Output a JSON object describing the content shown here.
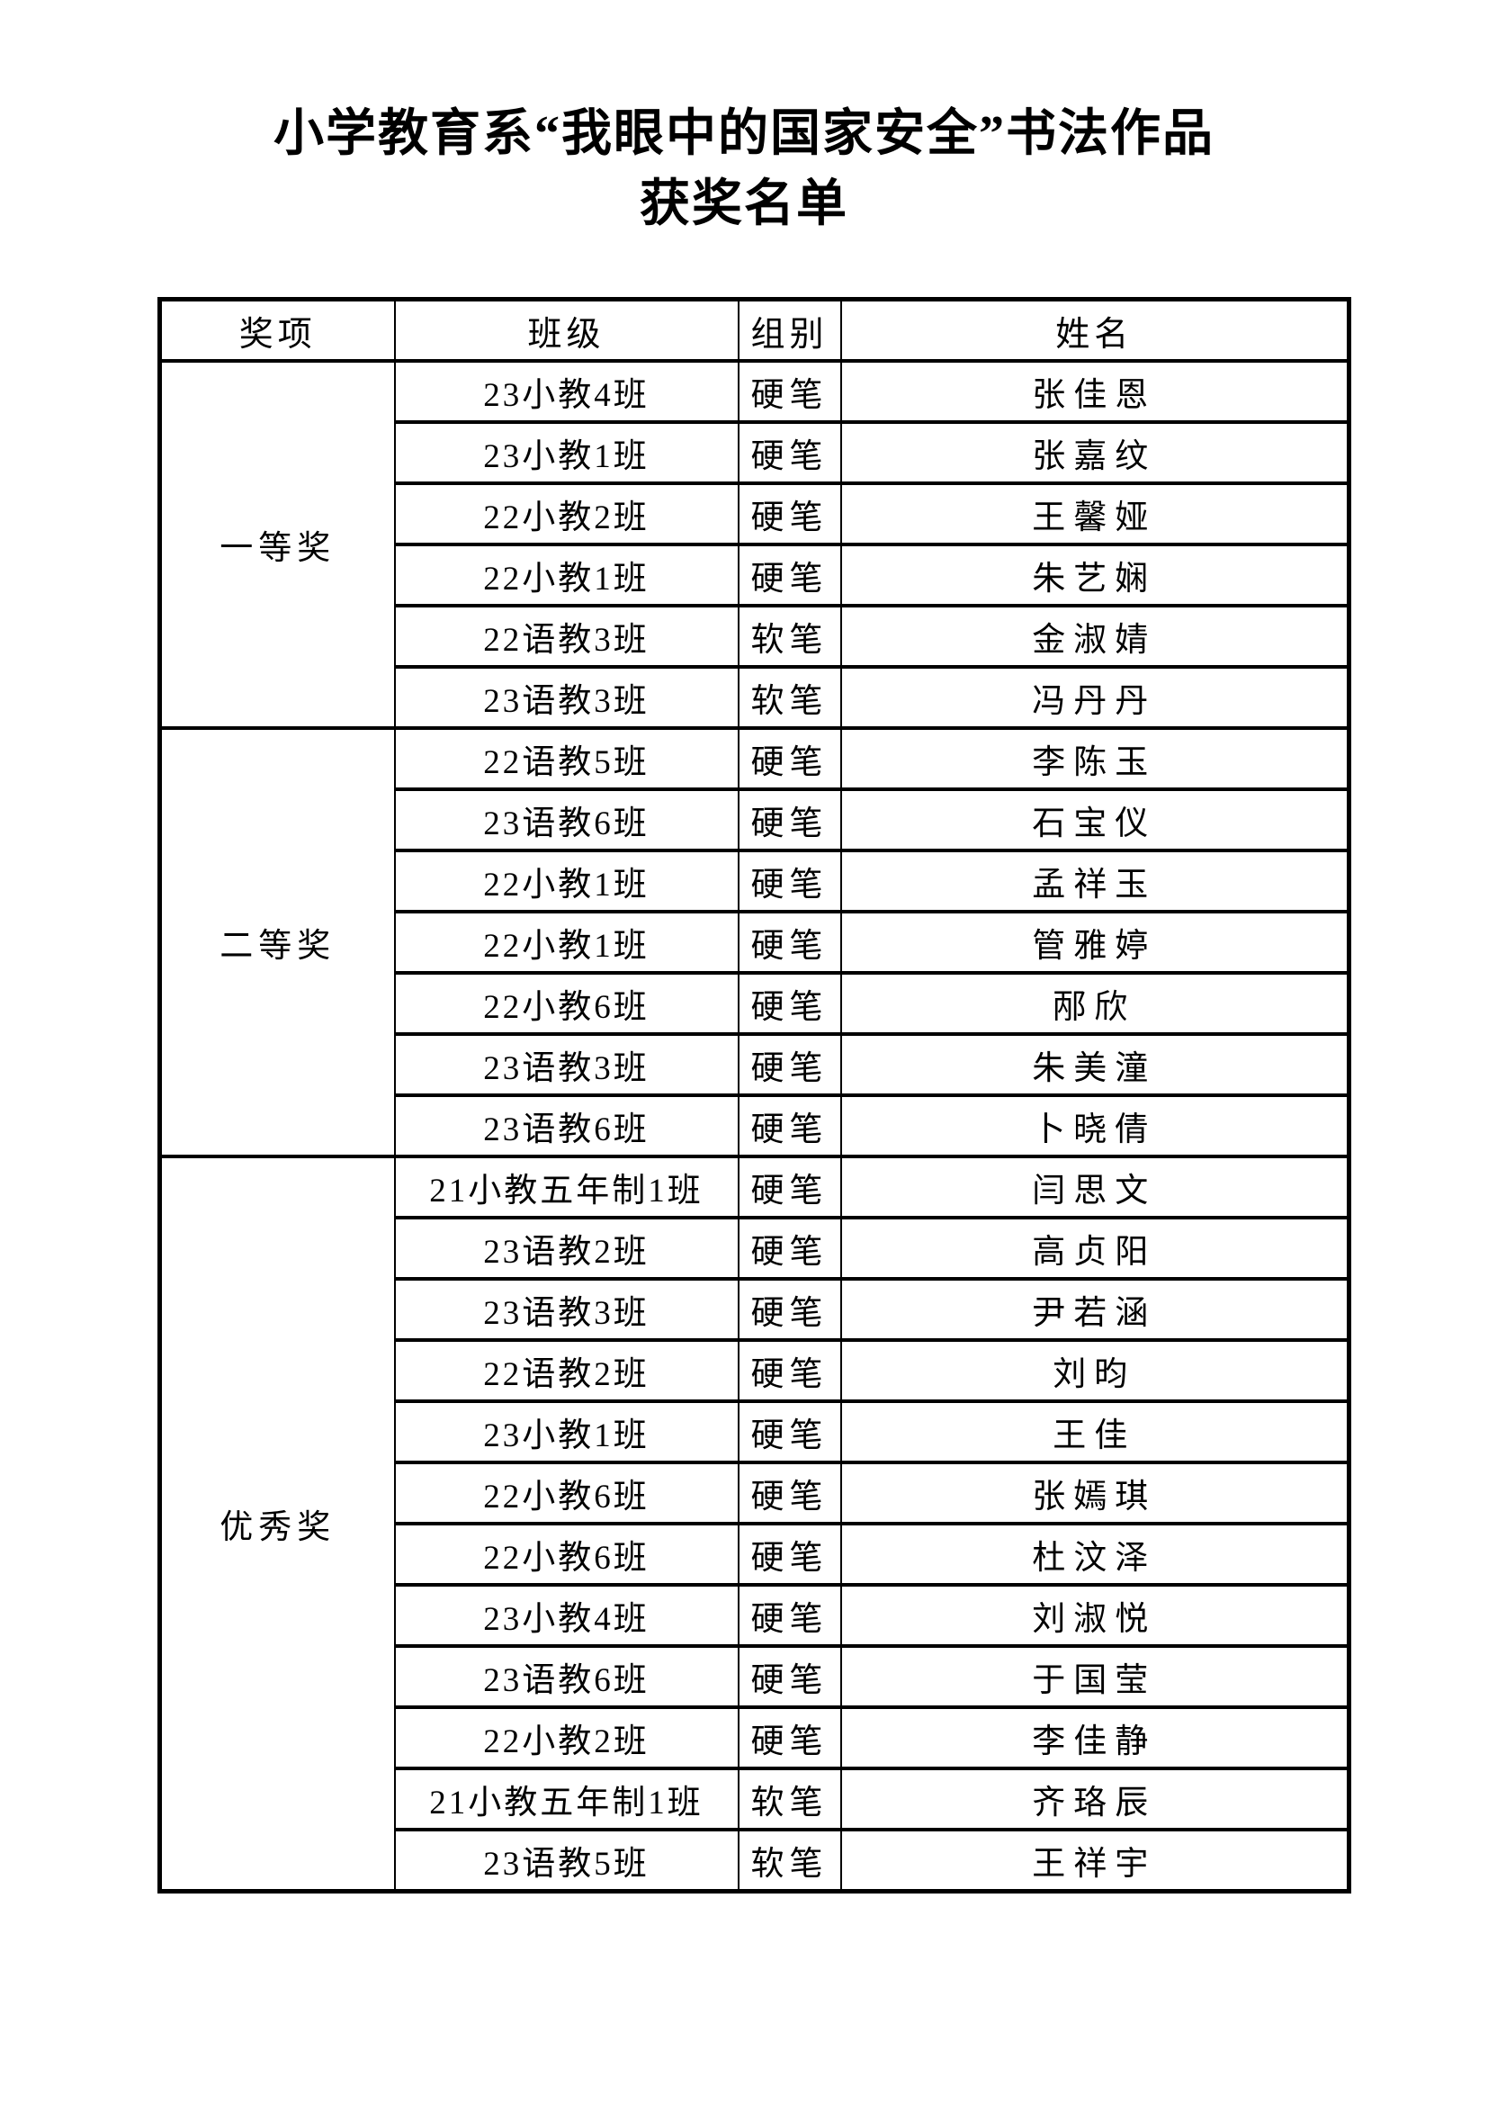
{
  "page": {
    "title_line1": "小学教育系“我眼中的国家安全”书法作品",
    "title_line2": "获奖名单"
  },
  "table": {
    "headers": [
      "奖项",
      "班级",
      "组别",
      "姓名"
    ],
    "column_keys": [
      "award",
      "class",
      "group",
      "name"
    ],
    "groups": [
      {
        "award": "一等奖",
        "rows": [
          [
            "23小教4班",
            "硬笔",
            "张佳恩"
          ],
          [
            "23小教1班",
            "硬笔",
            "张嘉纹"
          ],
          [
            "22小教2班",
            "硬笔",
            "王馨娅"
          ],
          [
            "22小教1班",
            "硬笔",
            "朱艺娴"
          ],
          [
            "22语教3班",
            "软笔",
            "金淑婧"
          ],
          [
            "23语教3班",
            "软笔",
            "冯丹丹"
          ]
        ]
      },
      {
        "award": "二等奖",
        "rows": [
          [
            "22语教5班",
            "硬笔",
            "李陈玉"
          ],
          [
            "23语教6班",
            "硬笔",
            "石宝仪"
          ],
          [
            "22小教1班",
            "硬笔",
            "孟祥玉"
          ],
          [
            "22小教1班",
            "硬笔",
            "管雅婷"
          ],
          [
            "22小教6班",
            "硬笔",
            "邴欣"
          ],
          [
            "23语教3班",
            "硬笔",
            "朱美潼"
          ],
          [
            "23语教6班",
            "硬笔",
            "卜晓倩"
          ]
        ]
      },
      {
        "award": "优秀奖",
        "rows": [
          [
            "21小教五年制1班",
            "硬笔",
            "闫思文"
          ],
          [
            "23语教2班",
            "硬笔",
            "高贞阳"
          ],
          [
            "23语教3班",
            "硬笔",
            "尹若涵"
          ],
          [
            "22语教2班",
            "硬笔",
            "刘昀"
          ],
          [
            "23小教1班",
            "硬笔",
            "王佳"
          ],
          [
            "22小教6班",
            "硬笔",
            "张嫣琪"
          ],
          [
            "22小教6班",
            "硬笔",
            "杜汶泽"
          ],
          [
            "23小教4班",
            "硬笔",
            "刘淑悦"
          ],
          [
            "23语教6班",
            "硬笔",
            "于国莹"
          ],
          [
            "22小教2班",
            "硬笔",
            "李佳静"
          ],
          [
            "21小教五年制1班",
            "软笔",
            "齐珞辰"
          ],
          [
            "23语教5班",
            "软笔",
            "王祥宇"
          ]
        ]
      }
    ]
  },
  "colors": {
    "text": "#000000",
    "border": "#000000",
    "background": "#ffffff"
  }
}
